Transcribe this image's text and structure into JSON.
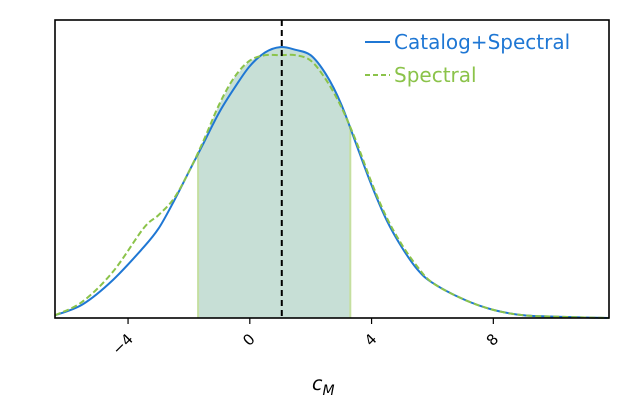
{
  "chart_data": {
    "type": "line",
    "title": "",
    "xlabel": "c_M",
    "xlabel_main": "c",
    "xlabel_sub": "M",
    "ylabel": "",
    "xlim": [
      -6.4,
      11.8
    ],
    "ylim": [
      0,
      1.1
    ],
    "x_ticks": [
      -4,
      0,
      4,
      8
    ],
    "x_tick_labels": [
      "−4",
      "0",
      "4",
      "8"
    ],
    "y_ticks": [],
    "grid": false,
    "legend_position": "upper right",
    "vline": {
      "x": 1.05,
      "style": "dashed",
      "color": "#000000"
    },
    "shaded_interval": {
      "x_from": -1.7,
      "x_to": 3.3,
      "color": "#8fbfae"
    },
    "x": [
      -6.4,
      -5.5,
      -4.5,
      -3.5,
      -3.0,
      -2.5,
      -2.0,
      -1.5,
      -1.0,
      -0.5,
      0.0,
      0.5,
      1.0,
      1.5,
      2.0,
      2.5,
      3.0,
      3.5,
      4.0,
      4.5,
      5.0,
      5.5,
      6.0,
      7.0,
      8.0,
      9.0,
      10.0,
      11.0,
      11.8
    ],
    "series": [
      {
        "name": "Catalog+Spectral",
        "color": "#1f77d4",
        "style": "solid",
        "values": [
          0.01,
          0.05,
          0.14,
          0.26,
          0.33,
          0.43,
          0.54,
          0.65,
          0.76,
          0.85,
          0.93,
          0.98,
          1.0,
          0.99,
          0.97,
          0.9,
          0.79,
          0.64,
          0.49,
          0.36,
          0.26,
          0.18,
          0.13,
          0.07,
          0.03,
          0.01,
          0.005,
          0.002,
          0.0
        ]
      },
      {
        "name": "Spectral",
        "color": "#8bc34a",
        "style": "dashed",
        "values": [
          0.01,
          0.06,
          0.17,
          0.33,
          0.38,
          0.44,
          0.54,
          0.66,
          0.79,
          0.89,
          0.95,
          0.97,
          0.97,
          0.97,
          0.95,
          0.88,
          0.78,
          0.65,
          0.5,
          0.37,
          0.27,
          0.19,
          0.13,
          0.07,
          0.03,
          0.01,
          0.005,
          0.002,
          0.0
        ]
      }
    ]
  }
}
